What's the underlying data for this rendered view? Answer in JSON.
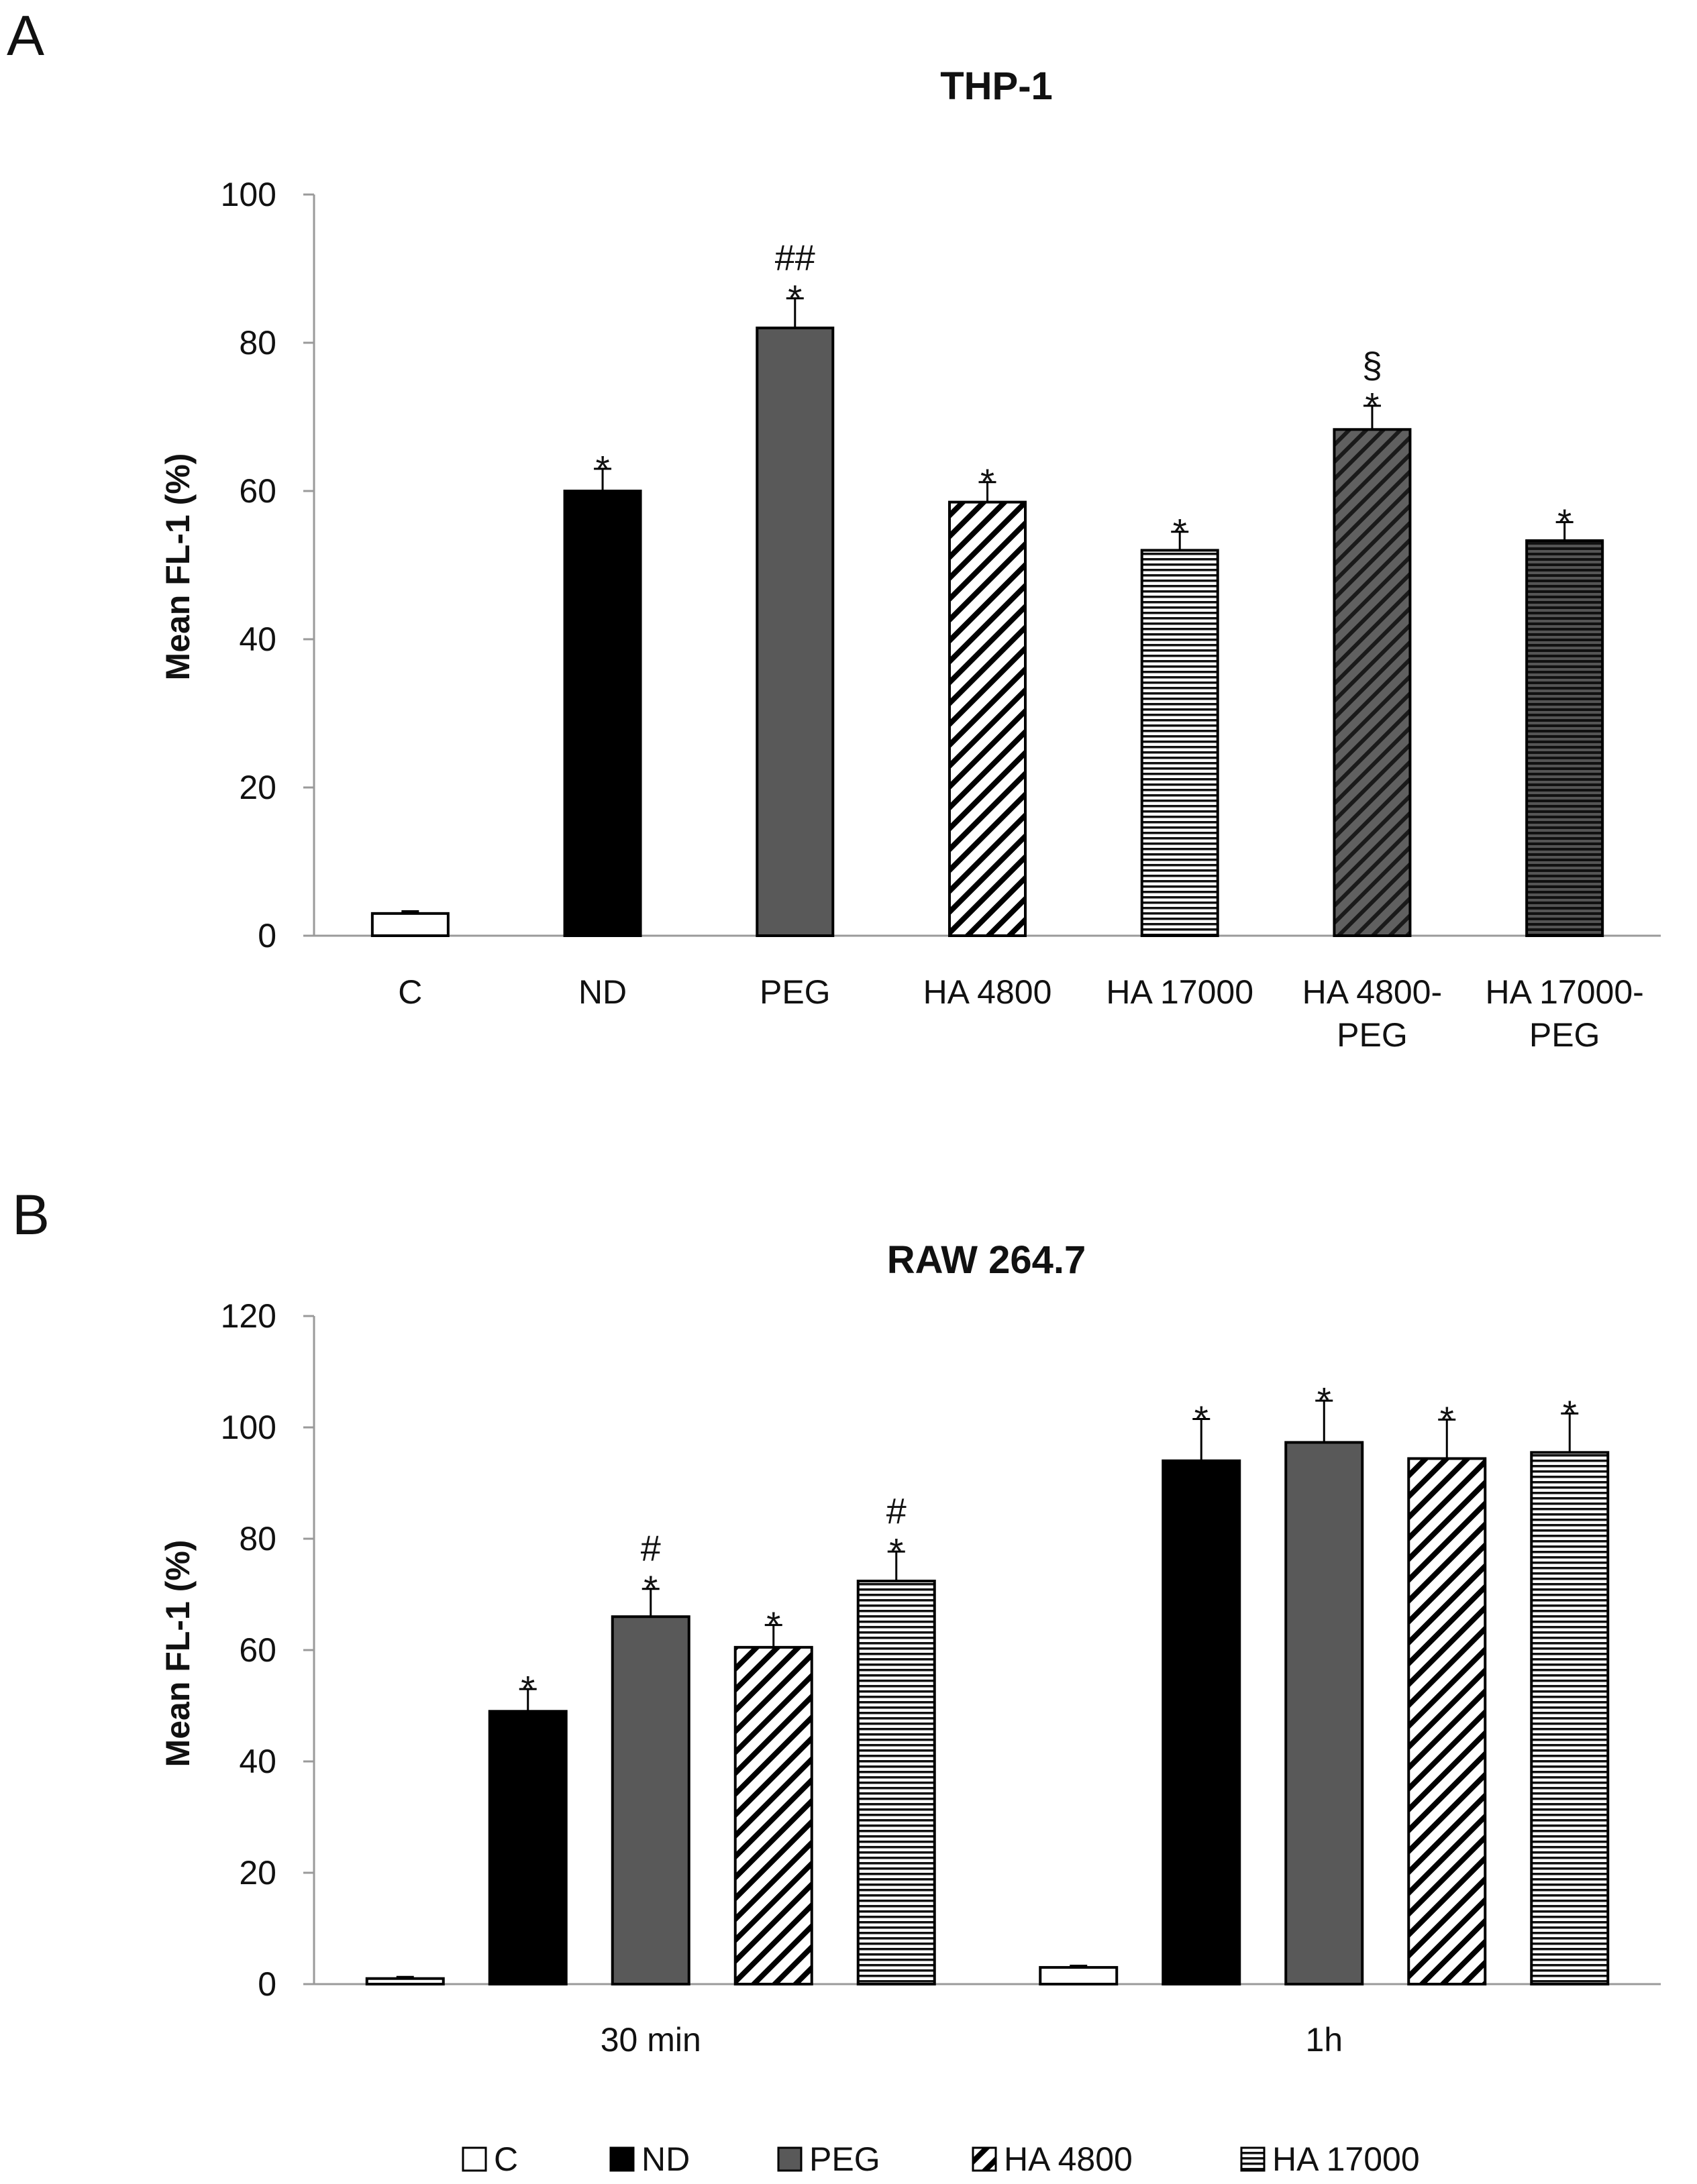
{
  "panels": {
    "a_letter": "A",
    "b_letter": "B"
  },
  "colors": {
    "axis": "#9a9a9a",
    "text": "#111111",
    "bar_outline": "#000000",
    "C": "#ffffff",
    "ND": "#000000",
    "PEG": "#595959",
    "HA 4800": "#ffffff",
    "HA 17000": "#ffffff",
    "HA 4800-PEG": "#3a3a3a",
    "HA 17000-PEG": "#2a2a2a"
  },
  "chart_data": [
    {
      "type": "bar",
      "title": "THP-1",
      "xlabel": "",
      "ylabel": "Mean FL-1 (%)",
      "ylim": [
        0,
        100
      ],
      "yticks": [
        "0",
        "20",
        "40",
        "60",
        "80",
        "100"
      ],
      "categories": [
        [
          "C"
        ],
        [
          "ND"
        ],
        [
          "PEG"
        ],
        [
          "HA 4800"
        ],
        [
          "HA 17000"
        ],
        [
          "HA 4800-",
          "PEG"
        ],
        [
          "HA 17000-",
          "PEG"
        ]
      ],
      "series": [
        {
          "name": "Mean FL-1",
          "values": [
            3,
            60,
            82,
            58.5,
            52,
            68.3,
            53.3
          ],
          "errors": [
            0.3,
            3,
            4,
            2.7,
            2.5,
            3.2,
            2.5
          ],
          "fills": [
            "C",
            "ND",
            "PEG",
            "HA 4800",
            "HA 17000",
            "HA 4800-PEG",
            "HA 17000-PEG"
          ],
          "annotations": [
            [],
            [
              "*"
            ],
            [
              "*",
              "##"
            ],
            [
              "*"
            ],
            [
              "*"
            ],
            [
              "*",
              "§"
            ],
            [
              "*"
            ]
          ]
        }
      ]
    },
    {
      "type": "bar",
      "title": "RAW 264.7",
      "xlabel": "",
      "ylabel": "Mean FL-1 (%)",
      "ylim": [
        0,
        120
      ],
      "yticks": [
        "0",
        "20",
        "40",
        "60",
        "80",
        "100",
        "120"
      ],
      "categories": [
        "30 min",
        "1h"
      ],
      "series": [
        {
          "name": "C",
          "values": [
            1,
            3
          ],
          "errors": [
            0.3,
            0.3
          ],
          "annotations": [
            [],
            []
          ]
        },
        {
          "name": "ND",
          "values": [
            49,
            94
          ],
          "errors": [
            4,
            7.5
          ],
          "annotations": [
            [
              "*"
            ],
            [
              "*"
            ]
          ]
        },
        {
          "name": "PEG",
          "values": [
            66,
            97.3
          ],
          "errors": [
            5,
            7.5
          ],
          "annotations": [
            [
              "*",
              "#"
            ],
            [
              "*"
            ]
          ]
        },
        {
          "name": "HA 4800",
          "values": [
            60.5,
            94.4
          ],
          "errors": [
            4,
            7
          ],
          "annotations": [
            [
              "*"
            ],
            [
              "*"
            ]
          ]
        },
        {
          "name": "HA 17000",
          "values": [
            72.4,
            95.5
          ],
          "errors": [
            5.3,
            7
          ],
          "annotations": [
            [
              "*",
              "#"
            ],
            [
              "*"
            ]
          ]
        }
      ],
      "legend": {
        "position": "bottom",
        "entries": [
          "C",
          "ND",
          "PEG",
          "HA 4800",
          "HA 17000"
        ]
      }
    }
  ]
}
